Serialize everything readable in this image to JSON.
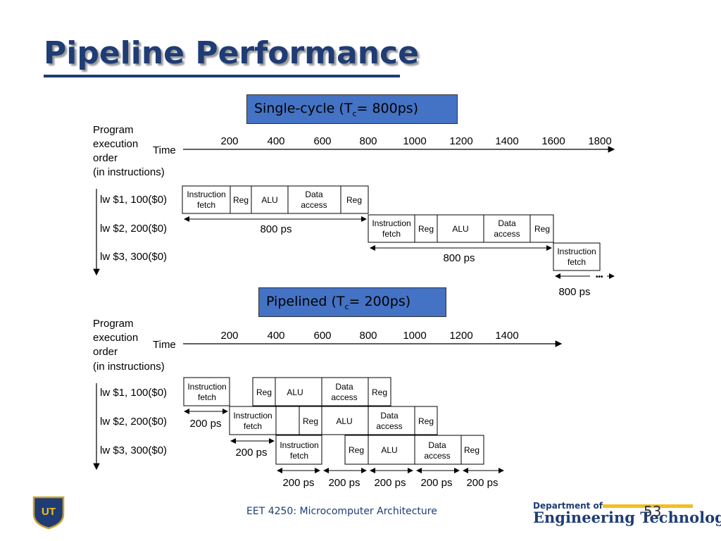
{
  "slide": {
    "title": "Pipeline Performance",
    "footer": "EET 4250: Microcomputer Architecture",
    "page_number": "53",
    "department_small": "Department of",
    "department_big": "Engineering Technology",
    "logo": "UT"
  },
  "single": {
    "label_main": "Single-cycle (T",
    "label_sub": "c",
    "label_end": "= 800ps)",
    "order_lines": [
      "Program",
      "execution",
      "order",
      "(in instructions)"
    ],
    "time_label": "Time",
    "ticks": [
      "200",
      "400",
      "600",
      "800",
      "1000",
      "1200",
      "1400",
      "1600",
      "1800"
    ],
    "instructions": [
      "lw  $1, 100($0)",
      "lw  $2, 200($0)",
      "lw  $3, 300($0)"
    ],
    "stages": [
      "Instruction fetch",
      "Reg",
      "ALU",
      "Data access",
      "Reg"
    ],
    "stage_lines": {
      "if1": "Instruction",
      "if2": "fetch",
      "da1": "Data",
      "da2": "access"
    },
    "durations": [
      "800 ps",
      "800 ps",
      "800 ps"
    ],
    "ellipsis": "•••"
  },
  "pipelined": {
    "label_main": "Pipelined (T",
    "label_sub": "c",
    "label_end": "= 200ps)",
    "order_lines": [
      "Program",
      "execution",
      "order",
      "(in instructions)"
    ],
    "time_label": "Time",
    "ticks": [
      "200",
      "400",
      "600",
      "800",
      "1000",
      "1200",
      "1400"
    ],
    "instructions": [
      "lw  $1, 100($0)",
      "lw  $2, 200($0)",
      "lw  $3, 300($0)"
    ],
    "stage_lines": {
      "if1": "Instruction",
      "if2": "fetch",
      "reg": "Reg",
      "alu": "ALU",
      "da1": "Data",
      "da2": "access"
    },
    "durations": [
      "200 ps",
      "200 ps",
      "200 ps",
      "200 ps",
      "200 ps",
      "200 ps",
      "200 ps"
    ]
  }
}
